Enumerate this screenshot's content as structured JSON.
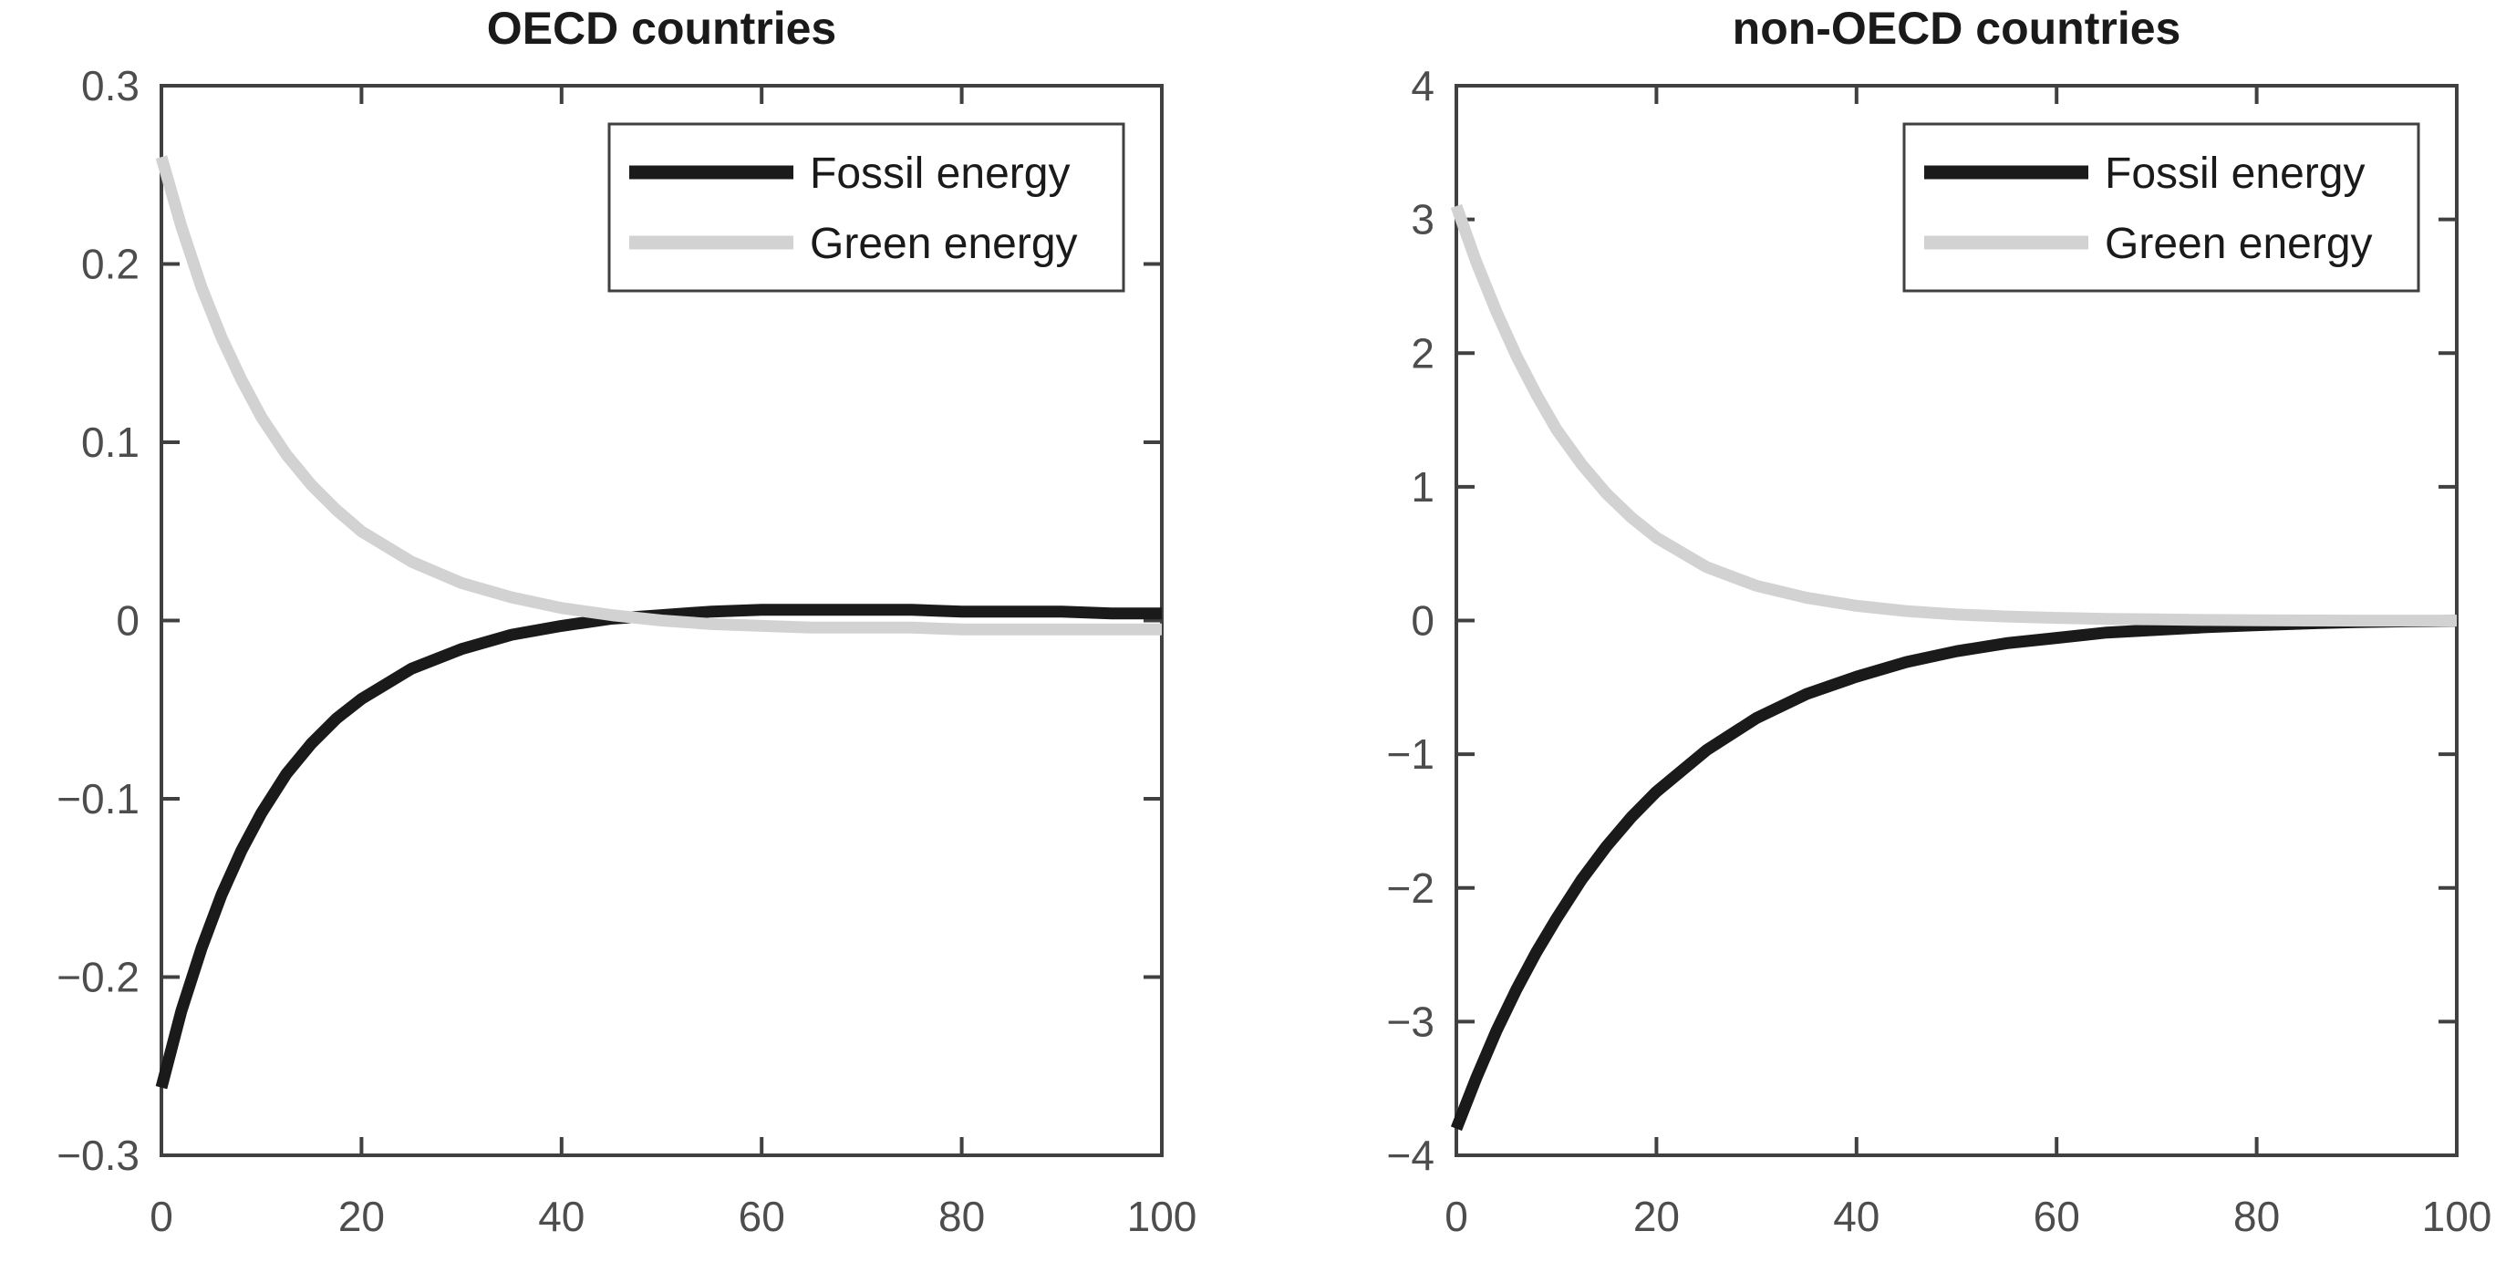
{
  "figure": {
    "background": "#ffffff"
  },
  "colors": {
    "axis": "#404040",
    "tick_label": "#4d4d4d",
    "title": "#1a1a1a",
    "legend_text": "#1a1a1a",
    "legend_border": "#404040",
    "legend_background": "#ffffff",
    "fossil": "#1a1a1a",
    "green": "#d2d2d2"
  },
  "chart_data": [
    {
      "type": "line",
      "title": "OECD countries",
      "xlabel": "",
      "ylabel": "",
      "xlim": [
        0,
        100
      ],
      "ylim": [
        -0.3,
        0.3
      ],
      "grid": false,
      "legend_position": "northeast",
      "xticks": {
        "values": [
          0,
          20,
          40,
          60,
          80,
          100
        ],
        "labels": [
          "0",
          "20",
          "40",
          "60",
          "80",
          "100"
        ]
      },
      "yticks": {
        "values": [
          0.3,
          0.2,
          0.1,
          0,
          -0.1,
          -0.2,
          -0.3
        ],
        "labels": [
          "0.3",
          "0.2",
          "0.1",
          "0",
          "−0.1",
          "−0.2",
          "−0.3"
        ]
      },
      "x": [
        0,
        2,
        4,
        6,
        8,
        10,
        12.5,
        15,
        17.5,
        20,
        25,
        30,
        35,
        40,
        45,
        50,
        55,
        60,
        65,
        70,
        75,
        80,
        85,
        90,
        95,
        100
      ],
      "series": [
        {
          "name": "Fossil energy",
          "color": "#1a1a1a",
          "values": [
            -0.262,
            -0.219,
            -0.184,
            -0.154,
            -0.129,
            -0.108,
            -0.086,
            -0.069,
            -0.055,
            -0.044,
            -0.027,
            -0.016,
            -0.008,
            -0.003,
            0.001,
            0.003,
            0.005,
            0.006,
            0.006,
            0.006,
            0.006,
            0.005,
            0.005,
            0.005,
            0.004,
            0.004
          ]
        },
        {
          "name": "Green energy",
          "color": "#d2d2d2",
          "values": [
            0.26,
            0.221,
            0.187,
            0.159,
            0.135,
            0.114,
            0.093,
            0.076,
            0.062,
            0.05,
            0.033,
            0.021,
            0.013,
            0.007,
            0.003,
            0.0,
            -0.002,
            -0.003,
            -0.004,
            -0.004,
            -0.004,
            -0.005,
            -0.005,
            -0.005,
            -0.005,
            -0.005
          ]
        }
      ]
    },
    {
      "type": "line",
      "title": "non-OECD countries",
      "xlabel": "",
      "ylabel": "",
      "xlim": [
        0,
        100
      ],
      "ylim": [
        -4,
        4
      ],
      "grid": false,
      "legend_position": "northeast",
      "xticks": {
        "values": [
          0,
          20,
          40,
          60,
          80,
          100
        ],
        "labels": [
          "0",
          "20",
          "40",
          "60",
          "80",
          "100"
        ]
      },
      "yticks": {
        "values": [
          4,
          3,
          2,
          1,
          0,
          -1,
          -2,
          -3,
          -4
        ],
        "labels": [
          "4",
          "3",
          "2",
          "1",
          "0",
          "−1",
          "−2",
          "−3",
          "−4"
        ]
      },
      "x": [
        0,
        2,
        4,
        6,
        8,
        10,
        12.5,
        15,
        17.5,
        20,
        25,
        30,
        35,
        40,
        45,
        50,
        55,
        60,
        65,
        70,
        75,
        80,
        85,
        90,
        95,
        100
      ],
      "series": [
        {
          "name": "Fossil energy",
          "color": "#1a1a1a",
          "values": [
            -3.8,
            -3.42,
            -3.07,
            -2.76,
            -2.48,
            -2.23,
            -1.94,
            -1.69,
            -1.47,
            -1.28,
            -0.97,
            -0.73,
            -0.55,
            -0.42,
            -0.31,
            -0.23,
            -0.17,
            -0.13,
            -0.09,
            -0.07,
            -0.05,
            -0.035,
            -0.022,
            -0.012,
            -0.006,
            -0.002
          ]
        },
        {
          "name": "Green energy",
          "color": "#d2d2d2",
          "values": [
            3.1,
            2.68,
            2.31,
            1.98,
            1.69,
            1.43,
            1.17,
            0.95,
            0.77,
            0.62,
            0.4,
            0.26,
            0.17,
            0.11,
            0.07,
            0.045,
            0.03,
            0.02,
            0.012,
            0.008,
            0.004,
            0.002,
            0.0,
            -0.001,
            -0.001,
            -0.001
          ]
        }
      ]
    }
  ]
}
